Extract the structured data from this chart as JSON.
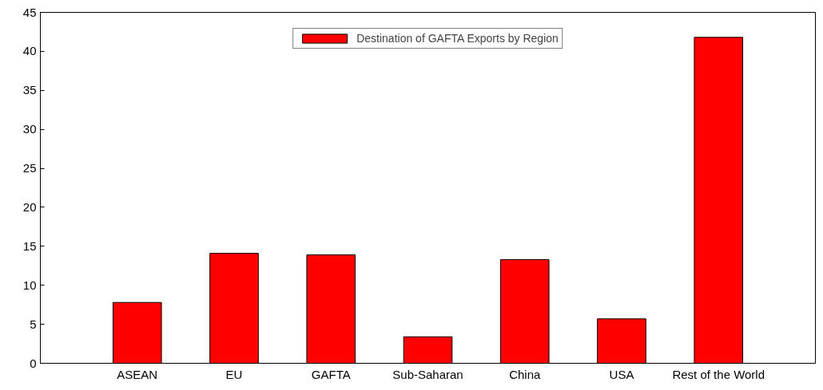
{
  "chart_data": {
    "type": "bar",
    "categories": [
      "ASEAN",
      "EU",
      "GAFTA",
      "Sub-Saharan",
      "China",
      "USA",
      "Rest of the World"
    ],
    "series": [
      {
        "name": "Destination of GAFTA Exports by Region",
        "color": "#ff0000",
        "values": [
          7.8,
          14.1,
          13.9,
          3.4,
          13.3,
          5.7,
          41.8
        ]
      }
    ],
    "ylim": [
      0,
      45
    ],
    "yticks": [
      0,
      5,
      10,
      15,
      20,
      25,
      30,
      35,
      40,
      45
    ],
    "grid": false,
    "legend": "top"
  }
}
